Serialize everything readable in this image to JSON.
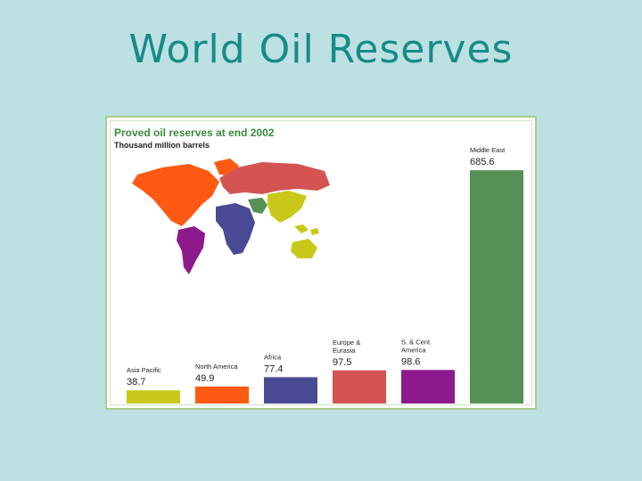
{
  "slide": {
    "title": "World Oil Reserves"
  },
  "chart_data": {
    "type": "bar",
    "title": "Proved oil reserves at end 2002",
    "subtitle": "Thousand million barrels",
    "xlabel": "",
    "ylabel": "",
    "ylim": [
      0,
      720
    ],
    "grid": false,
    "categories": [
      "Asia Pacific",
      "North America",
      "Africa",
      "Europe & Eurasia",
      "S. & Cent. America",
      "Middle East"
    ],
    "category_lines": [
      [
        "Asia Pacific"
      ],
      [
        "North America"
      ],
      [
        "Africa"
      ],
      [
        "Europe &",
        "Eurasia"
      ],
      [
        "S. & Cent.",
        "America"
      ],
      [
        "Middle East"
      ]
    ],
    "values": [
      38.7,
      49.9,
      77.4,
      97.5,
      98.6,
      685.6
    ],
    "value_labels": [
      "38.7",
      "49.9",
      "77.4",
      "97.5",
      "98.6",
      "685.6"
    ],
    "colors": [
      "#c8c81a",
      "#ff5a14",
      "#4a4a94",
      "#d45454",
      "#8c1a8c",
      "#559155"
    ]
  }
}
